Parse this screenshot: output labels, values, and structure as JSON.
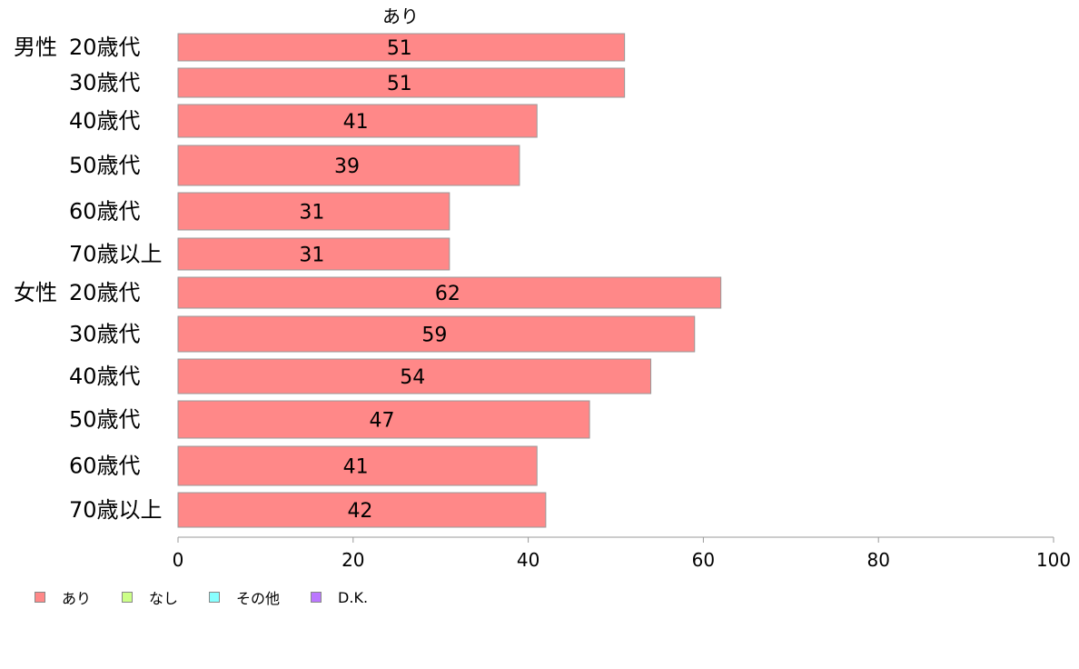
{
  "chart_data": {
    "type": "bar",
    "orientation": "horizontal",
    "title": "あり",
    "categories": [
      {
        "group": "男性",
        "label": "20歳代"
      },
      {
        "group": "",
        "label": "30歳代"
      },
      {
        "group": "",
        "label": "40歳代"
      },
      {
        "group": "",
        "label": "50歳代"
      },
      {
        "group": "",
        "label": "60歳代"
      },
      {
        "group": "",
        "label": "70歳以上"
      },
      {
        "group": "女性",
        "label": "20歳代"
      },
      {
        "group": "",
        "label": "30歳代"
      },
      {
        "group": "",
        "label": "40歳代"
      },
      {
        "group": "",
        "label": "50歳代"
      },
      {
        "group": "",
        "label": "60歳代"
      },
      {
        "group": "",
        "label": "70歳以上"
      }
    ],
    "series": [
      {
        "name": "あり",
        "color": "#ff8888",
        "values": [
          51,
          51,
          41,
          39,
          31,
          31,
          62,
          59,
          54,
          47,
          41,
          42
        ]
      }
    ],
    "xlim": [
      0,
      100
    ],
    "xticks": [
      0,
      20,
      40,
      60,
      80,
      100
    ],
    "grid": false,
    "legend_placement": "bottom-left",
    "legend": [
      {
        "label": "あり",
        "color": "#ff8888"
      },
      {
        "label": "なし",
        "color": "#ccff88"
      },
      {
        "label": "その他",
        "color": "#88ffff"
      },
      {
        "label": "D.K.",
        "color": "#bb77ff"
      }
    ]
  }
}
